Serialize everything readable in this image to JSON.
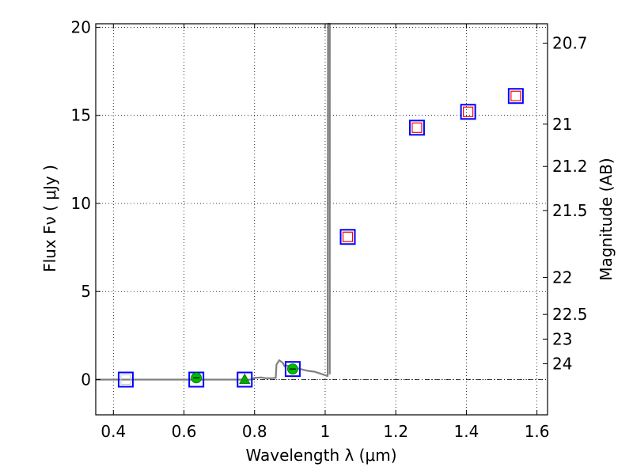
{
  "chart_data": {
    "type": "scatter",
    "xlabel": "Wavelength  λ (μm)",
    "ylabel": "Flux  Fν  ( μJy )",
    "ylabel_right": "Magnitude (AB)",
    "xlim": [
      0.35,
      1.63
    ],
    "ylim": [
      -2,
      20.2
    ],
    "x_ticks": [
      0.4,
      0.6,
      0.8,
      1.0,
      1.2,
      1.4,
      1.6
    ],
    "x_tick_labels": [
      "0.4",
      "0.6",
      "0.8",
      "1",
      "1.2",
      "1.4",
      "1.6"
    ],
    "y_ticks": [
      0,
      5,
      10,
      15,
      20
    ],
    "y_tick_labels": [
      "0",
      "5",
      "10",
      "15",
      "20"
    ],
    "right_ticks": [
      {
        "flux": 19.1,
        "label": "20.7"
      },
      {
        "flux": 14.5,
        "label": "21"
      },
      {
        "flux": 12.1,
        "label": "21.2"
      },
      {
        "flux": 9.6,
        "label": "21.5"
      },
      {
        "flux": 5.8,
        "label": "22"
      },
      {
        "flux": 3.7,
        "label": "22.5"
      },
      {
        "flux": 2.3,
        "label": "23"
      },
      {
        "flux": 0.9,
        "label": "24"
      }
    ],
    "grid": true,
    "zero_line": true,
    "model_sed": {
      "color": "#808080",
      "points": [
        [
          0.35,
          0.0
        ],
        [
          0.55,
          0.0
        ],
        [
          0.75,
          0.0
        ],
        [
          0.79,
          0.0
        ],
        [
          0.8,
          0.1
        ],
        [
          0.82,
          0.12
        ],
        [
          0.83,
          0.08
        ],
        [
          0.85,
          0.08
        ],
        [
          0.86,
          0.1
        ],
        [
          0.862,
          0.85
        ],
        [
          0.87,
          1.1
        ],
        [
          0.88,
          0.95
        ],
        [
          0.885,
          0.75
        ],
        [
          0.89,
          0.8
        ],
        [
          0.91,
          0.7
        ],
        [
          0.93,
          0.6
        ],
        [
          0.95,
          0.5
        ],
        [
          0.97,
          0.45
        ],
        [
          0.985,
          0.35
        ],
        [
          1.0,
          0.25
        ],
        [
          1.007,
          0.2
        ],
        [
          1.008,
          20.2
        ],
        [
          1.013,
          20.2
        ],
        [
          1.013,
          0.3
        ]
      ]
    },
    "series": [
      {
        "marker": "square-open-large",
        "color": "#0000ff",
        "x": [
          0.435,
          0.635,
          0.772,
          0.908,
          1.064,
          1.26,
          1.405,
          1.54
        ],
        "y": [
          0.0,
          0.0,
          0.0,
          0.6,
          8.1,
          14.3,
          15.2,
          16.1
        ]
      },
      {
        "marker": "square-open-small",
        "color": "#ff0000",
        "x": [
          1.064,
          1.26,
          1.405,
          1.54
        ],
        "y": [
          8.1,
          14.3,
          15.2,
          16.1
        ]
      },
      {
        "marker": "square-open-small",
        "color": "#cccccc",
        "x": [
          0.435
        ],
        "y": [
          0.0
        ]
      },
      {
        "marker": "circle",
        "color": "#00bb00",
        "x": [
          0.635,
          0.908
        ],
        "y": [
          0.1,
          0.6
        ]
      },
      {
        "marker": "triangle",
        "color": "#00aa00",
        "x": [
          0.772
        ],
        "y": [
          0.0
        ]
      }
    ]
  }
}
